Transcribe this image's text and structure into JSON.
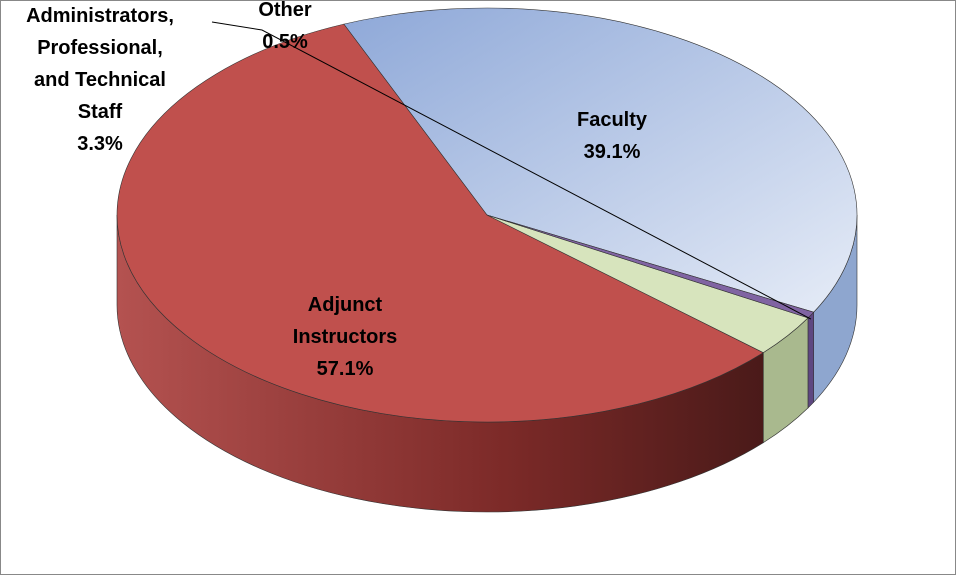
{
  "chart_data": {
    "type": "pie",
    "categories": [
      "Faculty",
      "Adjunct Instructors",
      "Administrators, Professional, and Technical Staff",
      "Other"
    ],
    "values": [
      39.1,
      57.1,
      3.3,
      0.5
    ],
    "value_labels": [
      "39.1%",
      "57.1%",
      "3.3%",
      "0.5%"
    ],
    "colors": [
      "#a6bfe6",
      "#c0504d",
      "#d7e4bd",
      "#8064a2"
    ],
    "side_colors": [
      "#8ea6cf",
      "#8a2f2d",
      "#a9b98e",
      "#5e4781"
    ]
  }
}
